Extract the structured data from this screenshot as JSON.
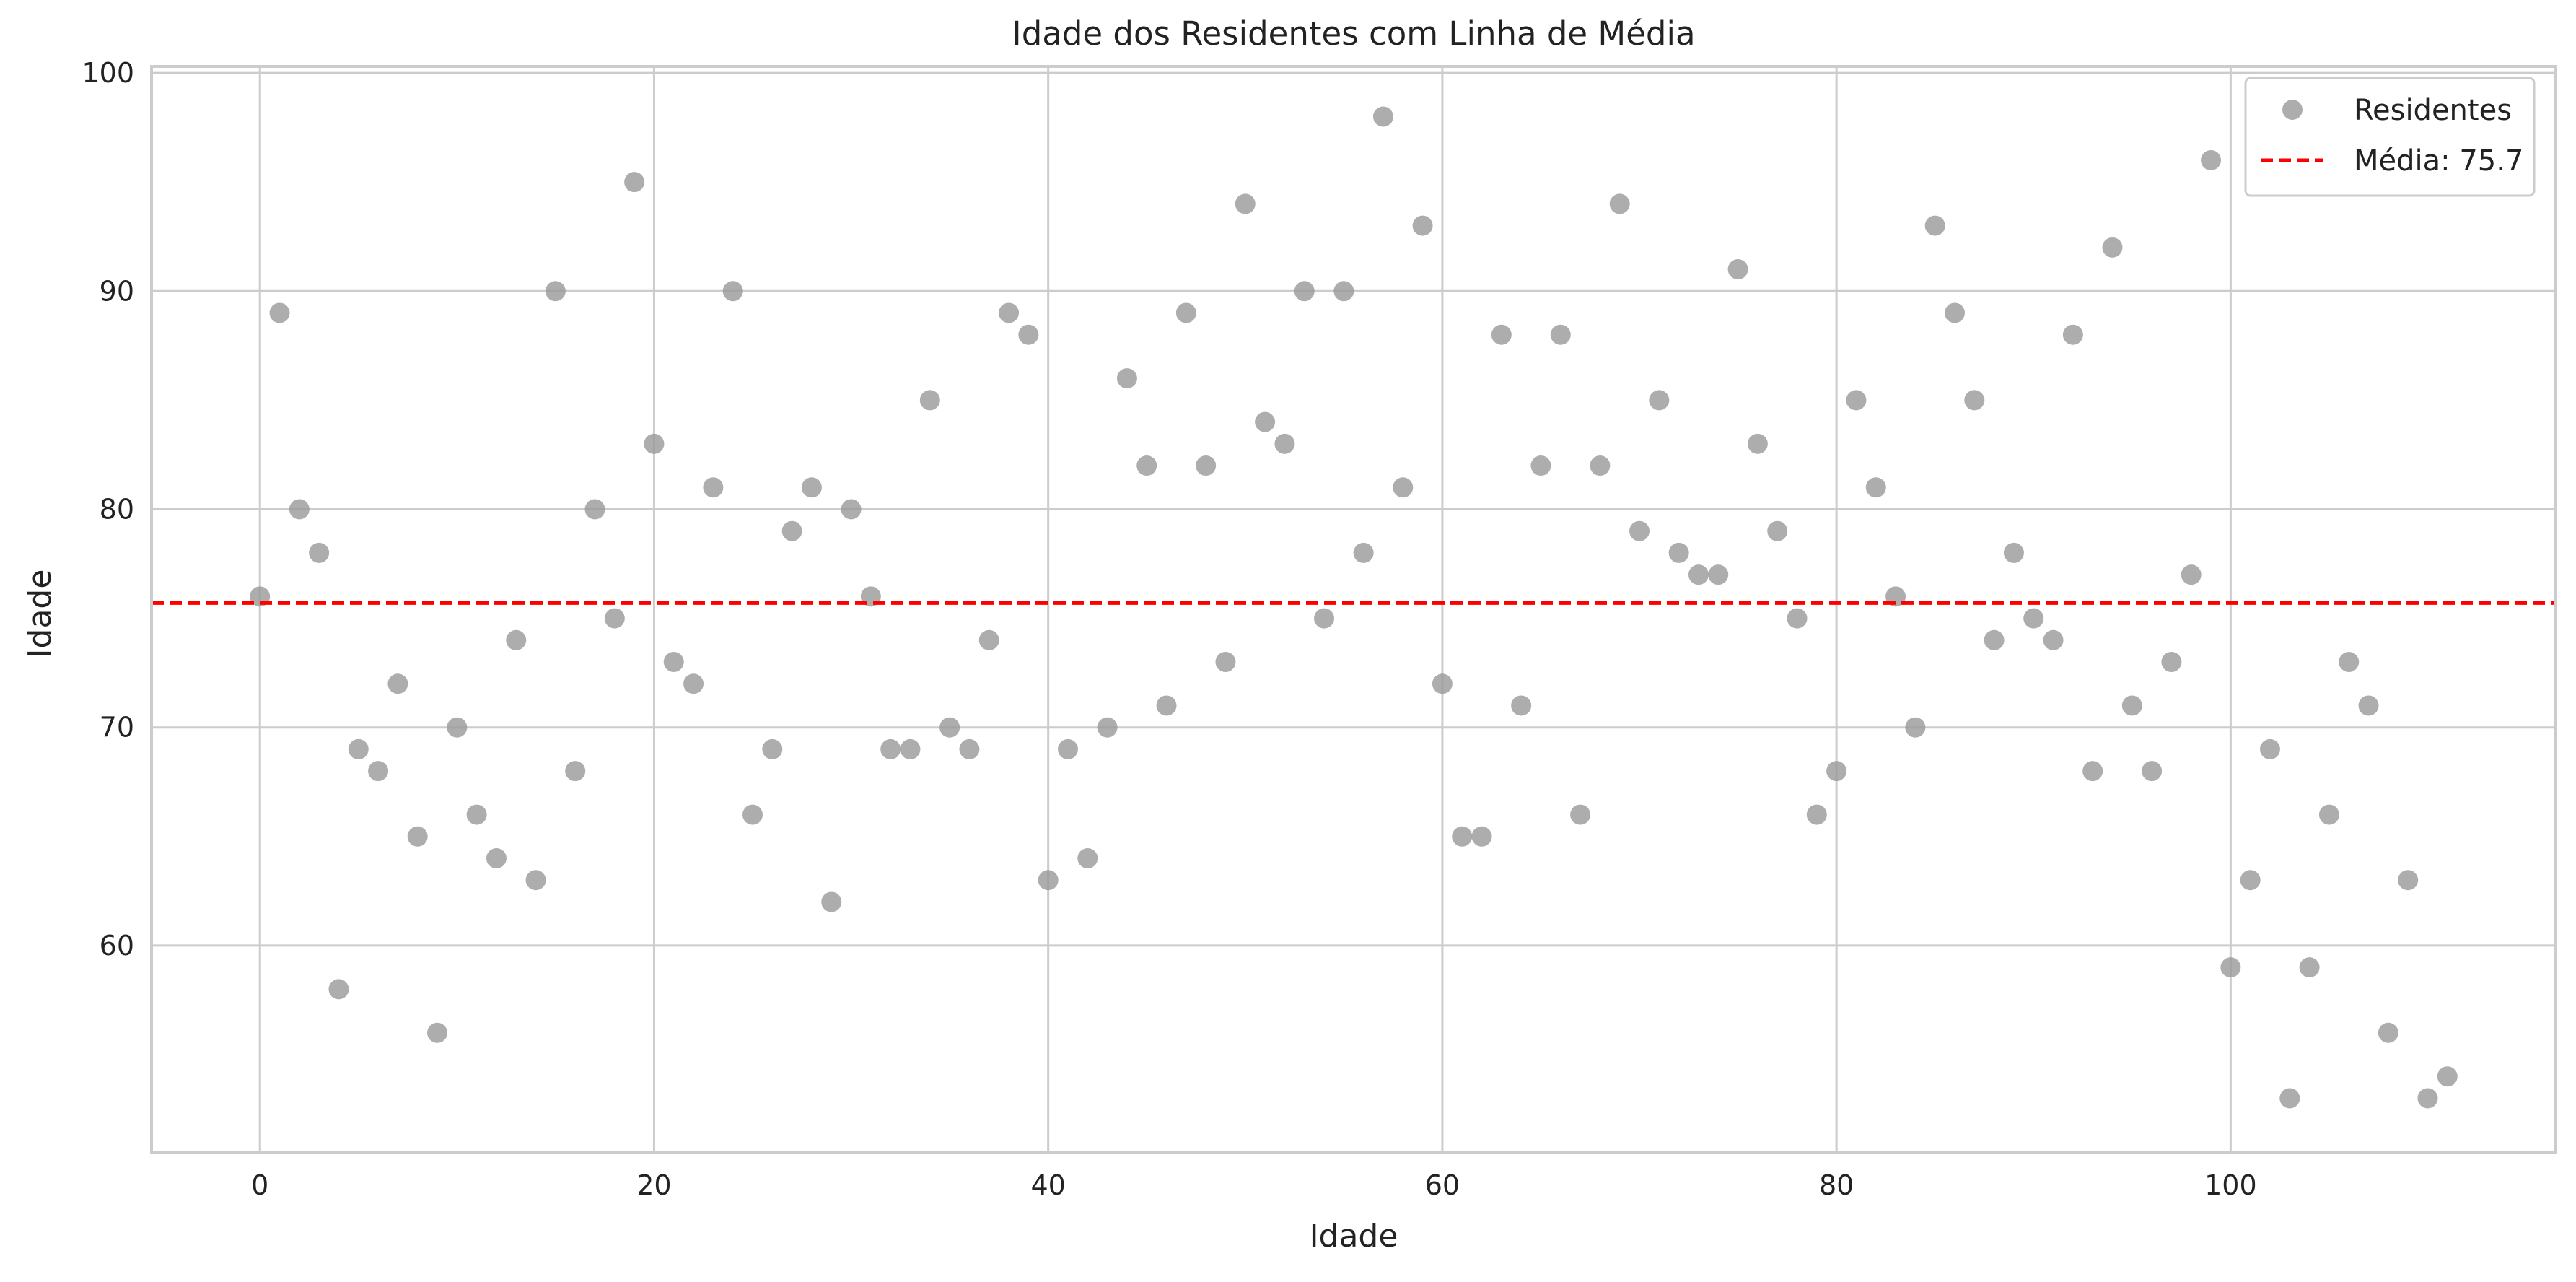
{
  "chart_data": {
    "type": "scatter",
    "title": "Idade dos Residentes com Linha de Média",
    "xlabel": "Idade",
    "ylabel": "Idade",
    "xlim": [
      -5.5,
      116.5
    ],
    "ylim": [
      50.5,
      100.3
    ],
    "xticks": [
      0,
      20,
      40,
      60,
      80,
      100
    ],
    "yticks": [
      60,
      70,
      80,
      90,
      100
    ],
    "grid": true,
    "legend_position": "top-right",
    "colors": {
      "points": "#999999",
      "mean_line": "#ff0000",
      "grid": "#cccccc",
      "frame": "#cccccc",
      "background": "#ffffff"
    },
    "series": [
      {
        "name": "Residentes",
        "x": [
          0,
          1,
          2,
          3,
          4,
          5,
          6,
          7,
          8,
          9,
          10,
          11,
          12,
          13,
          14,
          15,
          16,
          17,
          18,
          19,
          20,
          21,
          22,
          23,
          24,
          25,
          26,
          27,
          28,
          29,
          30,
          31,
          32,
          33,
          34,
          35,
          36,
          37,
          38,
          39,
          40,
          41,
          42,
          43,
          44,
          45,
          46,
          47,
          48,
          49,
          50,
          51,
          52,
          53,
          54,
          55,
          56,
          57,
          58,
          59,
          60,
          61,
          62,
          63,
          64,
          65,
          66,
          67,
          68,
          69,
          70,
          71,
          72,
          73,
          74,
          75,
          76,
          77,
          78,
          79,
          80,
          81,
          82,
          83,
          84,
          85,
          86,
          87,
          88,
          89,
          90,
          91,
          92,
          93,
          94,
          95,
          96,
          97,
          98,
          99,
          100,
          101,
          102,
          103,
          104,
          105,
          106,
          107,
          108,
          109,
          110,
          111
        ],
        "y": [
          76,
          89,
          80,
          78,
          58,
          69,
          68,
          72,
          65,
          56,
          70,
          66,
          64,
          74,
          63,
          90,
          68,
          80,
          75,
          95,
          83,
          73,
          72,
          81,
          90,
          66,
          69,
          79,
          81,
          62,
          80,
          76,
          69,
          69,
          85,
          70,
          69,
          74,
          89,
          88,
          63,
          69,
          64,
          70,
          86,
          82,
          71,
          89,
          82,
          73,
          94,
          84,
          83,
          90,
          75,
          90,
          78,
          98,
          81,
          93,
          72,
          65,
          65,
          88,
          71,
          82,
          88,
          66,
          82,
          94,
          79,
          85,
          78,
          77,
          77,
          91,
          83,
          79,
          75,
          66,
          68,
          85,
          81,
          76,
          70,
          93,
          89,
          85,
          74,
          78,
          75,
          74,
          88,
          68,
          92,
          71,
          68,
          73,
          77,
          96,
          59,
          63,
          69,
          53,
          59,
          66,
          73,
          71,
          56,
          63,
          53,
          54
        ]
      }
    ],
    "mean_line": {
      "label": "Média: 75.7",
      "value": 75.7
    }
  }
}
